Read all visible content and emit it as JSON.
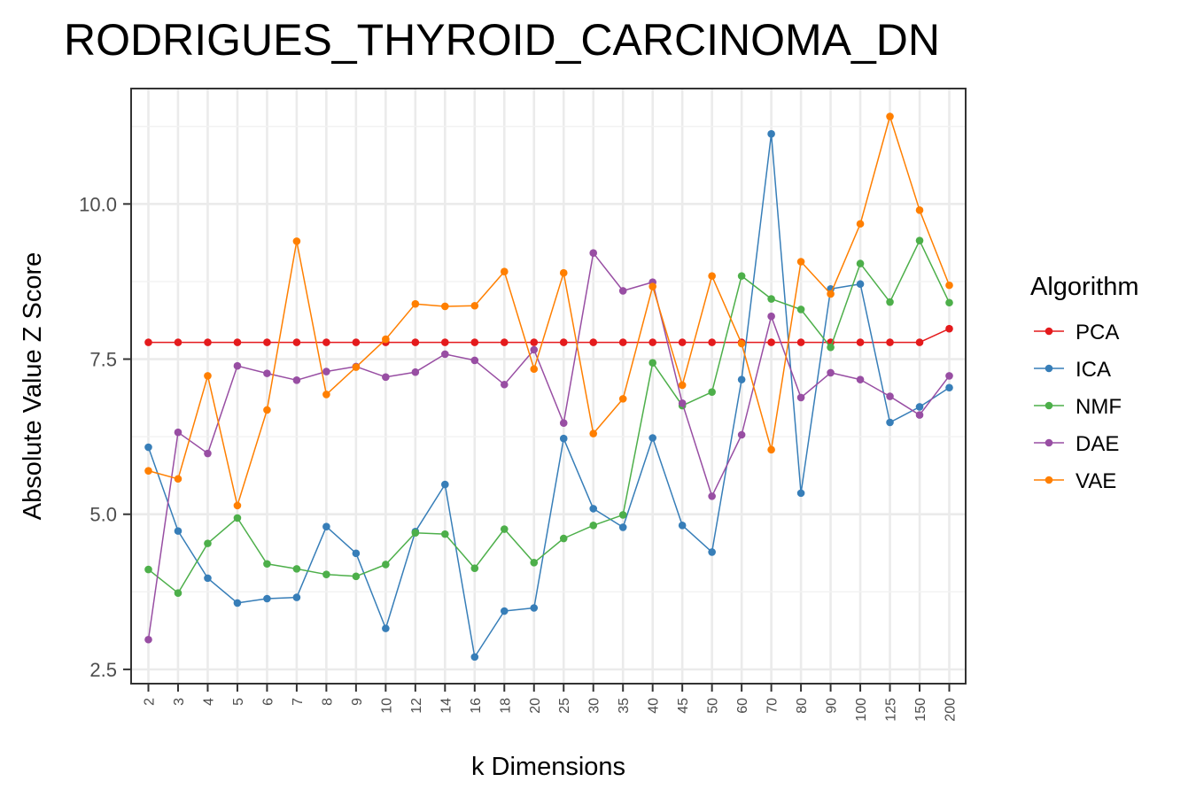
{
  "chart_data": {
    "type": "line",
    "title": "RODRIGUES_THYROID_CARCINOMA_DN",
    "xlabel": "k Dimensions",
    "ylabel": "Absolute Value Z Score",
    "categories": [
      "2",
      "3",
      "4",
      "5",
      "6",
      "7",
      "8",
      "9",
      "10",
      "12",
      "14",
      "16",
      "18",
      "20",
      "25",
      "30",
      "35",
      "40",
      "45",
      "50",
      "60",
      "70",
      "80",
      "90",
      "100",
      "125",
      "150",
      "200"
    ],
    "yticks": [
      2.5,
      5.0,
      7.5,
      10.0
    ],
    "ytick_labels": [
      "2.5",
      "5.0",
      "7.5",
      "10.0"
    ],
    "ylim": [
      2.27,
      11.86
    ],
    "grid": true,
    "legend": {
      "title": "Algorithm",
      "position": "right"
    },
    "series": [
      {
        "name": "PCA",
        "color": "#e41a1c",
        "values": [
          7.77,
          7.77,
          7.77,
          7.77,
          7.77,
          7.77,
          7.77,
          7.77,
          7.77,
          7.77,
          7.77,
          7.77,
          7.77,
          7.77,
          7.77,
          7.77,
          7.77,
          7.77,
          7.77,
          7.77,
          7.77,
          7.77,
          7.77,
          7.77,
          7.77,
          7.77,
          7.77,
          7.99
        ]
      },
      {
        "name": "ICA",
        "color": "#377eb8",
        "values": [
          6.08,
          4.73,
          3.97,
          3.57,
          3.64,
          3.66,
          4.8,
          4.37,
          3.16,
          4.72,
          5.48,
          2.7,
          3.44,
          3.49,
          6.22,
          5.09,
          4.79,
          6.23,
          4.82,
          4.39,
          7.17,
          11.13,
          5.34,
          8.63,
          8.71,
          6.48,
          6.73,
          7.04
        ]
      },
      {
        "name": "NMF",
        "color": "#4daf4a",
        "values": [
          4.11,
          3.73,
          4.53,
          4.94,
          4.2,
          4.12,
          4.03,
          4.0,
          4.19,
          4.7,
          4.68,
          4.13,
          4.76,
          4.22,
          4.61,
          4.82,
          4.99,
          7.44,
          6.75,
          6.97,
          8.84,
          8.47,
          8.3,
          7.69,
          9.04,
          8.42,
          9.41,
          8.41
        ]
      },
      {
        "name": "DAE",
        "color": "#984ea3",
        "values": [
          2.98,
          6.32,
          5.98,
          7.39,
          7.27,
          7.16,
          7.3,
          7.38,
          7.21,
          7.29,
          7.58,
          7.48,
          7.09,
          7.65,
          6.47,
          9.21,
          8.6,
          8.74,
          6.79,
          5.29,
          6.28,
          8.19,
          6.88,
          7.28,
          7.17,
          6.9,
          6.6,
          7.23
        ]
      },
      {
        "name": "VAE",
        "color": "#ff7f00",
        "values": [
          5.7,
          5.57,
          7.23,
          5.14,
          6.68,
          9.4,
          6.93,
          7.37,
          7.82,
          8.39,
          8.35,
          8.36,
          8.91,
          7.34,
          8.89,
          6.3,
          6.86,
          8.67,
          7.08,
          8.84,
          7.75,
          6.04,
          9.07,
          8.55,
          9.68,
          11.41,
          9.9,
          8.69
        ]
      }
    ]
  }
}
